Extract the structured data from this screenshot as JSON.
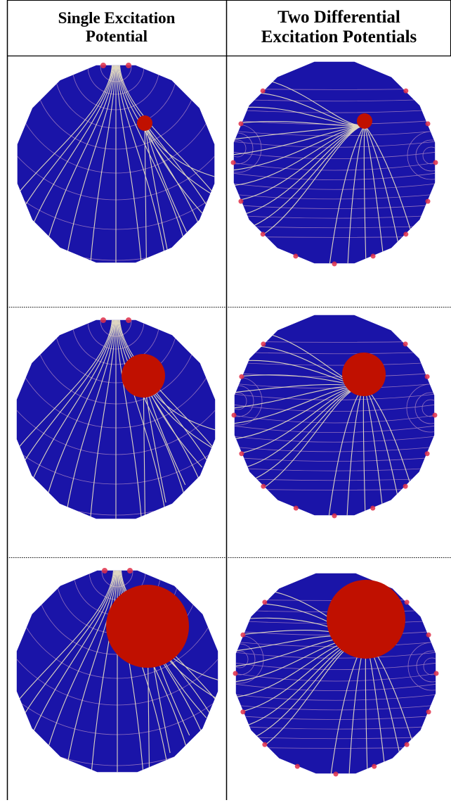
{
  "columns": [
    {
      "id": "single",
      "heading_line1": "Single Excitation",
      "heading_line2": "Potential"
    },
    {
      "id": "differential",
      "heading_line1": "Two Differential",
      "heading_line2": "Excitation Potentials"
    }
  ],
  "rows": [
    {
      "id": "row-1",
      "inclusion": "small-red-inclusion"
    },
    {
      "id": "row-2",
      "inclusion": "medium-red-inclusion"
    },
    {
      "id": "row-3",
      "inclusion": "large-red-inclusion"
    }
  ],
  "colors": {
    "domain": "#1a14a8",
    "inclusion": "#c01000",
    "electrode": "#e0304a",
    "field_line": "#f4ecc4",
    "equipotential": "#b78fc4",
    "grid": "#000000"
  }
}
